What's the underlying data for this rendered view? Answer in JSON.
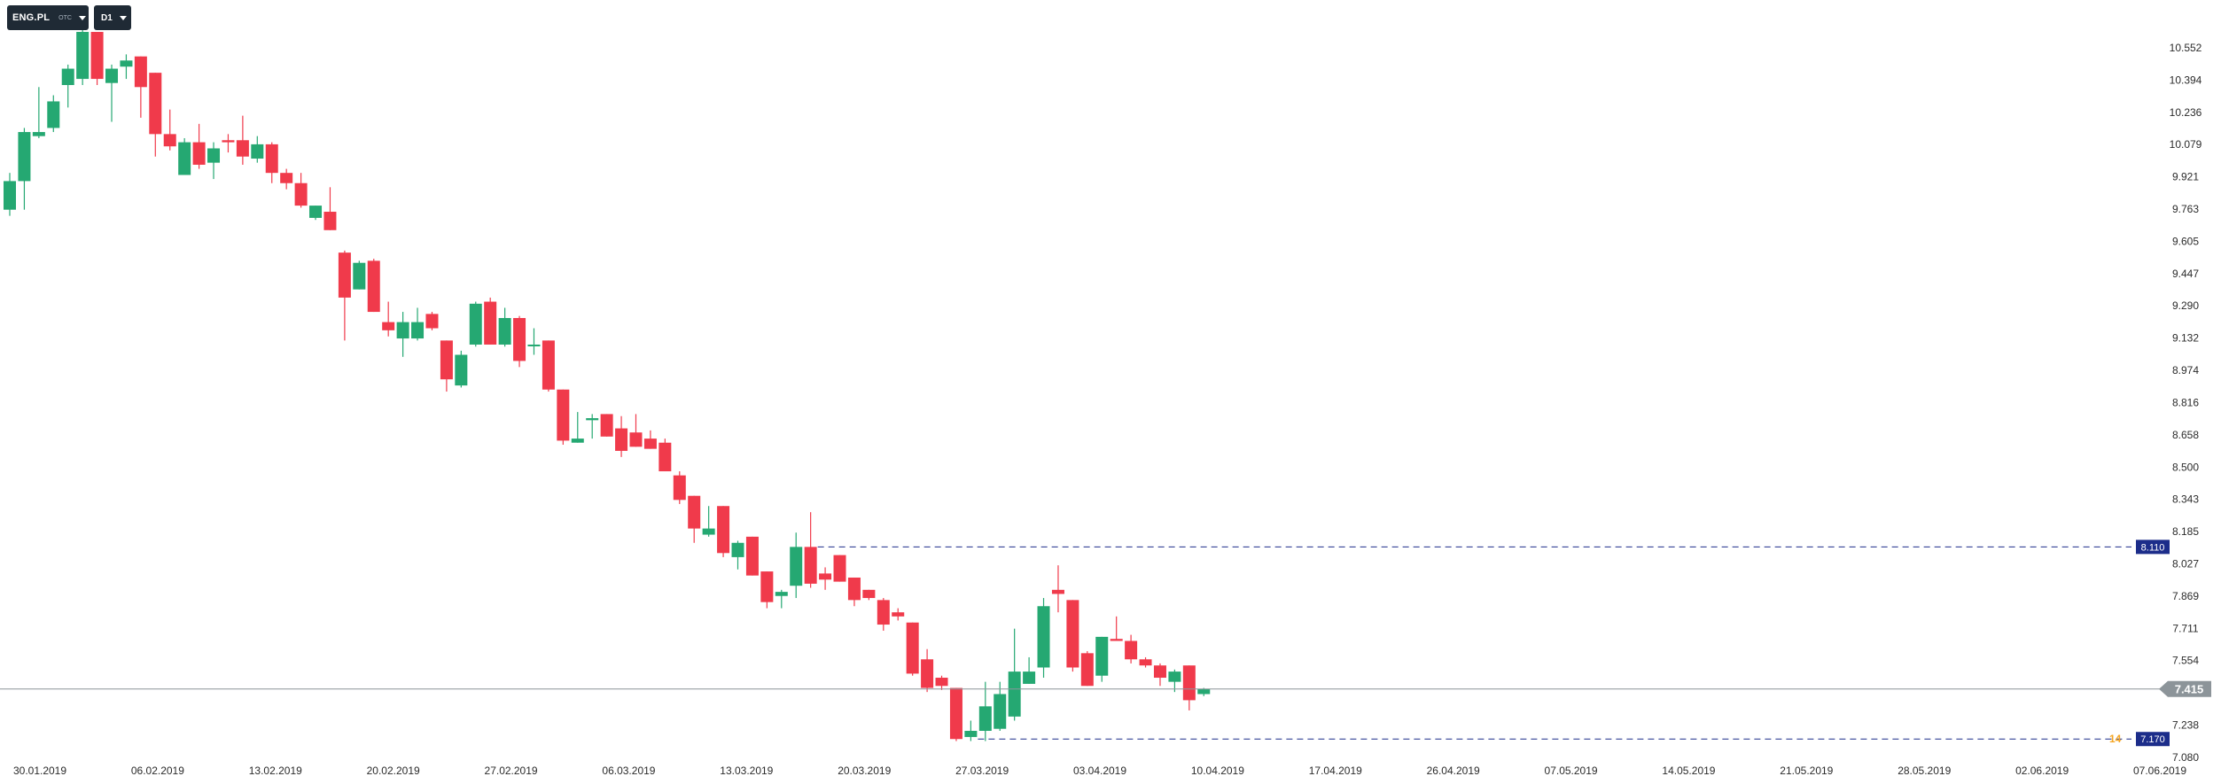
{
  "toolbar": {
    "symbol": "ENG.PL",
    "symbol_sub": "OTC",
    "timeframe": "D1"
  },
  "chart_data": {
    "type": "candlestick",
    "x_labels": [
      "30.01.2019",
      "06.02.2019",
      "13.02.2019",
      "20.02.2019",
      "27.02.2019",
      "06.03.2019",
      "13.03.2019",
      "20.03.2019",
      "27.03.2019",
      "03.04.2019",
      "10.04.2019",
      "17.04.2019",
      "26.04.2019",
      "07.05.2019",
      "14.05.2019",
      "21.05.2019",
      "28.05.2019",
      "02.06.2019",
      "07.06.2019"
    ],
    "y_ticks": [
      "10.552",
      "10.394",
      "10.236",
      "10.079",
      "9.921",
      "9.763",
      "9.605",
      "9.447",
      "9.290",
      "9.132",
      "8.974",
      "8.816",
      "8.658",
      "8.500",
      "8.343",
      "8.185",
      "8.027",
      "7.869",
      "7.711",
      "7.554",
      "7.415",
      "7.238",
      "7.080"
    ],
    "ylim": [
      7.08,
      10.552
    ],
    "current_price": "7.415",
    "levels": [
      {
        "label": "8.110",
        "value": 8.11
      },
      {
        "label": "7.170",
        "value": 7.17
      }
    ],
    "level_tag": "14",
    "colors": {
      "up": "#25a872",
      "down": "#f03a4b",
      "current": "#8c9499",
      "level": "#1c2d8a"
    },
    "candles": [
      {
        "o": 9.76,
        "h": 9.94,
        "l": 9.73,
        "c": 9.9
      },
      {
        "o": 9.9,
        "h": 10.16,
        "l": 9.76,
        "c": 10.14
      },
      {
        "o": 10.12,
        "h": 10.36,
        "l": 10.11,
        "c": 10.14
      },
      {
        "o": 10.16,
        "h": 10.32,
        "l": 10.14,
        "c": 10.29
      },
      {
        "o": 10.37,
        "h": 10.47,
        "l": 10.26,
        "c": 10.45
      },
      {
        "o": 10.4,
        "h": 10.71,
        "l": 10.37,
        "c": 10.63
      },
      {
        "o": 10.63,
        "h": 10.63,
        "l": 10.37,
        "c": 10.4
      },
      {
        "o": 10.38,
        "h": 10.47,
        "l": 10.19,
        "c": 10.45
      },
      {
        "o": 10.46,
        "h": 10.52,
        "l": 10.4,
        "c": 10.49
      },
      {
        "o": 10.51,
        "h": 10.51,
        "l": 10.21,
        "c": 10.36
      },
      {
        "o": 10.43,
        "h": 10.43,
        "l": 10.02,
        "c": 10.13
      },
      {
        "o": 10.13,
        "h": 10.25,
        "l": 10.05,
        "c": 10.07
      },
      {
        "o": 9.93,
        "h": 10.11,
        "l": 9.93,
        "c": 10.09
      },
      {
        "o": 10.09,
        "h": 10.18,
        "l": 9.96,
        "c": 9.98
      },
      {
        "o": 9.99,
        "h": 10.09,
        "l": 9.91,
        "c": 10.06
      },
      {
        "o": 10.1,
        "h": 10.13,
        "l": 10.04,
        "c": 10.09
      },
      {
        "o": 10.1,
        "h": 10.22,
        "l": 9.98,
        "c": 10.02
      },
      {
        "o": 10.01,
        "h": 10.12,
        "l": 9.99,
        "c": 10.08
      },
      {
        "o": 10.08,
        "h": 10.09,
        "l": 9.89,
        "c": 9.94
      },
      {
        "o": 9.94,
        "h": 9.96,
        "l": 9.86,
        "c": 9.89
      },
      {
        "o": 9.89,
        "h": 9.94,
        "l": 9.77,
        "c": 9.78
      },
      {
        "o": 9.72,
        "h": 9.78,
        "l": 9.71,
        "c": 9.78
      },
      {
        "o": 9.75,
        "h": 9.87,
        "l": 9.66,
        "c": 9.66
      },
      {
        "o": 9.55,
        "h": 9.56,
        "l": 9.12,
        "c": 9.33
      },
      {
        "o": 9.37,
        "h": 9.51,
        "l": 9.37,
        "c": 9.5
      },
      {
        "o": 9.51,
        "h": 9.52,
        "l": 9.26,
        "c": 9.26
      },
      {
        "o": 9.21,
        "h": 9.31,
        "l": 9.14,
        "c": 9.17
      },
      {
        "o": 9.13,
        "h": 9.26,
        "l": 9.04,
        "c": 9.21
      },
      {
        "o": 9.13,
        "h": 9.28,
        "l": 9.12,
        "c": 9.21
      },
      {
        "o": 9.25,
        "h": 9.26,
        "l": 9.17,
        "c": 9.18
      },
      {
        "o": 9.12,
        "h": 9.12,
        "l": 8.87,
        "c": 8.93
      },
      {
        "o": 8.9,
        "h": 9.07,
        "l": 8.89,
        "c": 9.05
      },
      {
        "o": 9.1,
        "h": 9.31,
        "l": 9.09,
        "c": 9.3
      },
      {
        "o": 9.31,
        "h": 9.33,
        "l": 9.1,
        "c": 9.1
      },
      {
        "o": 9.1,
        "h": 9.28,
        "l": 9.09,
        "c": 9.23
      },
      {
        "o": 9.23,
        "h": 9.24,
        "l": 8.99,
        "c": 9.02
      },
      {
        "o": 9.1,
        "h": 9.18,
        "l": 9.05,
        "c": 9.1
      },
      {
        "o": 9.12,
        "h": 9.12,
        "l": 8.87,
        "c": 8.88
      },
      {
        "o": 8.88,
        "h": 8.88,
        "l": 8.61,
        "c": 8.63
      },
      {
        "o": 8.62,
        "h": 8.77,
        "l": 8.62,
        "c": 8.64
      },
      {
        "o": 8.73,
        "h": 8.76,
        "l": 8.64,
        "c": 8.74
      },
      {
        "o": 8.76,
        "h": 8.76,
        "l": 8.65,
        "c": 8.65
      },
      {
        "o": 8.69,
        "h": 8.75,
        "l": 8.55,
        "c": 8.58
      },
      {
        "o": 8.67,
        "h": 8.76,
        "l": 8.6,
        "c": 8.6
      },
      {
        "o": 8.64,
        "h": 8.68,
        "l": 8.59,
        "c": 8.59
      },
      {
        "o": 8.62,
        "h": 8.64,
        "l": 8.48,
        "c": 8.48
      },
      {
        "o": 8.46,
        "h": 8.48,
        "l": 8.32,
        "c": 8.34
      },
      {
        "o": 8.36,
        "h": 8.36,
        "l": 8.13,
        "c": 8.2
      },
      {
        "o": 8.17,
        "h": 8.31,
        "l": 8.16,
        "c": 8.2
      },
      {
        "o": 8.31,
        "h": 8.31,
        "l": 8.06,
        "c": 8.08
      },
      {
        "o": 8.06,
        "h": 8.14,
        "l": 8.0,
        "c": 8.13
      },
      {
        "o": 8.16,
        "h": 8.16,
        "l": 7.97,
        "c": 7.97
      },
      {
        "o": 7.99,
        "h": 7.99,
        "l": 7.81,
        "c": 7.84
      },
      {
        "o": 7.87,
        "h": 7.9,
        "l": 7.81,
        "c": 7.89
      },
      {
        "o": 7.92,
        "h": 8.18,
        "l": 7.86,
        "c": 8.11
      },
      {
        "o": 8.11,
        "h": 8.28,
        "l": 7.91,
        "c": 7.93
      },
      {
        "o": 7.98,
        "h": 8.01,
        "l": 7.9,
        "c": 7.95
      },
      {
        "o": 8.07,
        "h": 8.07,
        "l": 7.94,
        "c": 7.94
      },
      {
        "o": 7.96,
        "h": 7.96,
        "l": 7.82,
        "c": 7.85
      },
      {
        "o": 7.9,
        "h": 7.9,
        "l": 7.85,
        "c": 7.86
      },
      {
        "o": 7.85,
        "h": 7.86,
        "l": 7.7,
        "c": 7.73
      },
      {
        "o": 7.79,
        "h": 7.81,
        "l": 7.75,
        "c": 7.77
      },
      {
        "o": 7.74,
        "h": 7.74,
        "l": 7.48,
        "c": 7.49
      },
      {
        "o": 7.56,
        "h": 7.61,
        "l": 7.4,
        "c": 7.42
      },
      {
        "o": 7.47,
        "h": 7.48,
        "l": 7.41,
        "c": 7.43
      },
      {
        "o": 7.42,
        "h": 7.42,
        "l": 7.16,
        "c": 7.17
      },
      {
        "o": 7.18,
        "h": 7.26,
        "l": 7.16,
        "c": 7.21
      },
      {
        "o": 7.21,
        "h": 7.45,
        "l": 7.16,
        "c": 7.33
      },
      {
        "o": 7.22,
        "h": 7.45,
        "l": 7.21,
        "c": 7.39
      },
      {
        "o": 7.28,
        "h": 7.71,
        "l": 7.26,
        "c": 7.5
      },
      {
        "o": 7.44,
        "h": 7.57,
        "l": 7.44,
        "c": 7.5
      },
      {
        "o": 7.52,
        "h": 7.86,
        "l": 7.47,
        "c": 7.82
      },
      {
        "o": 7.9,
        "h": 8.02,
        "l": 7.79,
        "c": 7.88
      },
      {
        "o": 7.85,
        "h": 7.85,
        "l": 7.5,
        "c": 7.52
      },
      {
        "o": 7.59,
        "h": 7.6,
        "l": 7.43,
        "c": 7.43
      },
      {
        "o": 7.48,
        "h": 7.67,
        "l": 7.45,
        "c": 7.67
      },
      {
        "o": 7.66,
        "h": 7.77,
        "l": 7.65,
        "c": 7.65
      },
      {
        "o": 7.65,
        "h": 7.68,
        "l": 7.54,
        "c": 7.56
      },
      {
        "o": 7.56,
        "h": 7.57,
        "l": 7.52,
        "c": 7.53
      },
      {
        "o": 7.53,
        "h": 7.54,
        "l": 7.43,
        "c": 7.47
      },
      {
        "o": 7.45,
        "h": 7.51,
        "l": 7.4,
        "c": 7.5
      },
      {
        "o": 7.53,
        "h": 7.53,
        "l": 7.31,
        "c": 7.36
      },
      {
        "o": 7.39,
        "h": 7.42,
        "l": 7.38,
        "c": 7.415
      }
    ]
  }
}
